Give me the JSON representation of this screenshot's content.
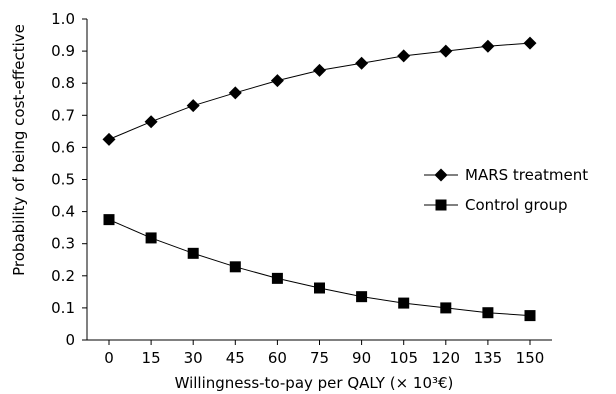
{
  "chart_data": {
    "type": "line",
    "title": "",
    "xlabel": "Willingness-to-pay per QALY (× 10³€)",
    "ylabel": "Probability of being cost-effective",
    "x": [
      0,
      15,
      30,
      45,
      60,
      75,
      90,
      105,
      120,
      135,
      150
    ],
    "x_tick_labels": [
      "0",
      "15",
      "30",
      "45",
      "60",
      "75",
      "90",
      "105",
      "120",
      "135",
      "150"
    ],
    "y_tick_labels": [
      "0",
      "0.1",
      "0.2",
      "0.3",
      "0.4",
      "0.5",
      "0.6",
      "0.7",
      "0.8",
      "0.9",
      "1.0"
    ],
    "ylim": [
      0,
      1.0
    ],
    "grid": false,
    "legend_position": "right",
    "series": [
      {
        "name": "MARS treatment",
        "marker": "diamond",
        "color": "#000000",
        "values": [
          0.625,
          0.68,
          0.73,
          0.77,
          0.808,
          0.84,
          0.862,
          0.885,
          0.9,
          0.915,
          0.925
        ]
      },
      {
        "name": "Control group",
        "marker": "square",
        "color": "#000000",
        "values": [
          0.375,
          0.318,
          0.27,
          0.228,
          0.192,
          0.162,
          0.135,
          0.115,
          0.1,
          0.085,
          0.076
        ]
      }
    ]
  }
}
